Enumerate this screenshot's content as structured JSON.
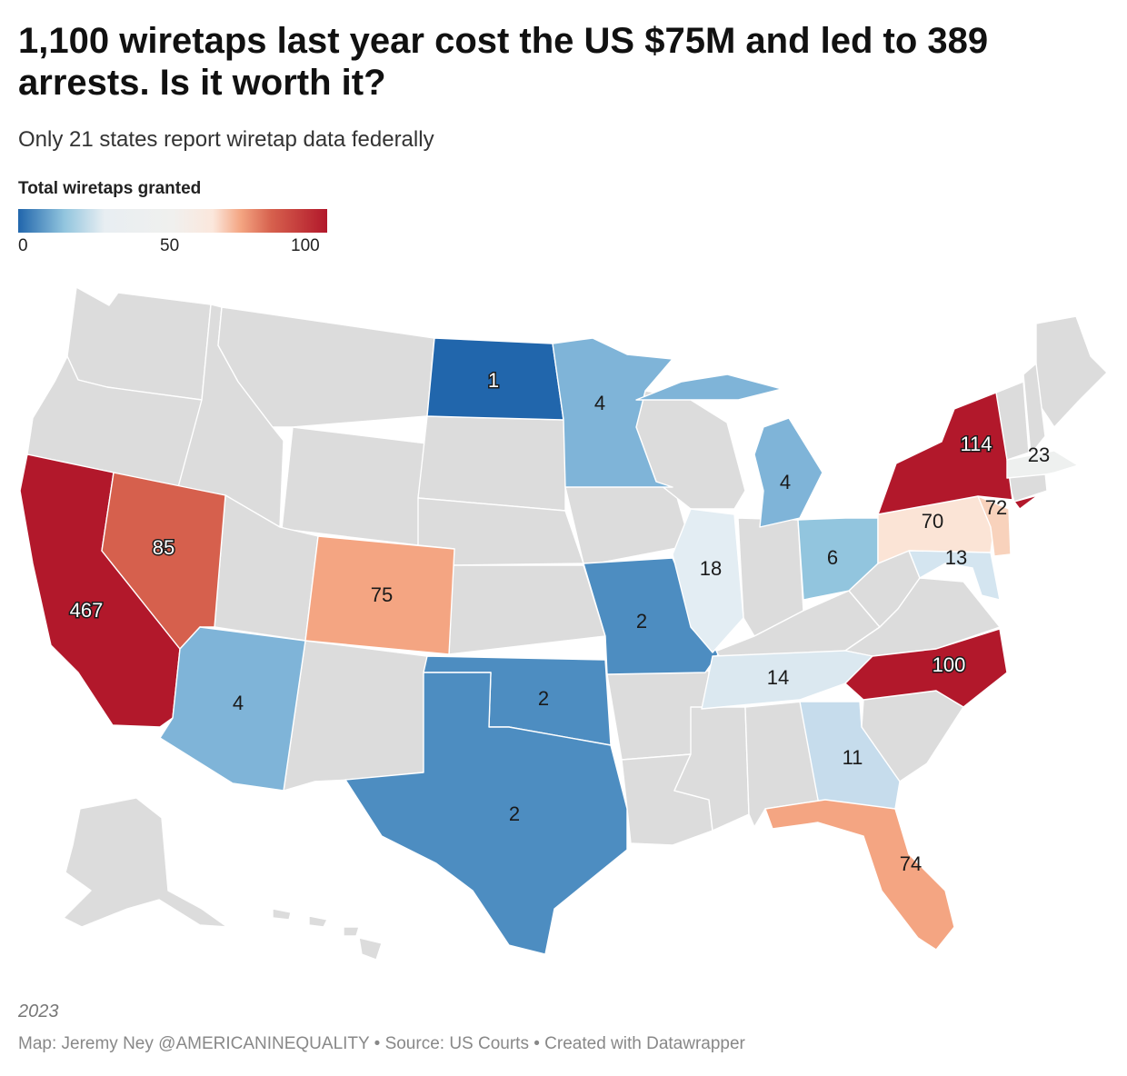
{
  "title": "1,100 wiretaps last year cost the US $75M and led to 389 arrests. Is it worth it?",
  "subtitle": "Only 21 states report wiretap data federally",
  "legend": {
    "title": "Total wiretaps granted",
    "min_label": "0",
    "mid_label": "50",
    "max_label": "100",
    "colors": [
      "#2166ac",
      "#92c5de",
      "#f0f0ee",
      "#f4a582",
      "#b2182b"
    ]
  },
  "no_data_color": "#dcdcdc",
  "states": {
    "CA": {
      "name": "California",
      "value": 467,
      "label": "467",
      "color": "#b2182b"
    },
    "NV": {
      "name": "Nevada",
      "value": 85,
      "label": "85",
      "color": "#d6604d"
    },
    "CO": {
      "name": "Colorado",
      "value": 75,
      "label": "75",
      "color": "#f4a582"
    },
    "AZ": {
      "name": "Arizona",
      "value": 4,
      "label": "4",
      "color": "#7fb4d8"
    },
    "ND": {
      "name": "North Dakota",
      "value": 1,
      "label": "1",
      "color": "#2166ac"
    },
    "MN": {
      "name": "Minnesota",
      "value": 4,
      "label": "4",
      "color": "#7fb4d8"
    },
    "MI": {
      "name": "Michigan",
      "value": 4,
      "label": "4",
      "color": "#7fb4d8"
    },
    "MO": {
      "name": "Missouri",
      "value": 2,
      "label": "2",
      "color": "#4d8dc1"
    },
    "OK": {
      "name": "Oklahoma",
      "value": 2,
      "label": "2",
      "color": "#4d8dc1"
    },
    "TX": {
      "name": "Texas",
      "value": 2,
      "label": "2",
      "color": "#4d8dc1"
    },
    "IL": {
      "name": "Illinois",
      "value": 18,
      "label": "18",
      "color": "#e3edf3"
    },
    "OH": {
      "name": "Ohio",
      "value": 6,
      "label": "6",
      "color": "#92c5de"
    },
    "TN": {
      "name": "Tennessee",
      "value": 14,
      "label": "14",
      "color": "#dbe8f0"
    },
    "GA": {
      "name": "Georgia",
      "value": 11,
      "label": "11",
      "color": "#c6dcec"
    },
    "FL": {
      "name": "Florida",
      "value": 74,
      "label": "74",
      "color": "#f4a582"
    },
    "NC": {
      "name": "North Carolina",
      "value": 100,
      "label": "100",
      "color": "#b2182b"
    },
    "PA": {
      "name": "Pennsylvania",
      "value": 70,
      "label": "70",
      "color": "#fbe4d6"
    },
    "NJ": {
      "name": "New Jersey",
      "value": 72,
      "label": "72",
      "color": "#f8d2bc"
    },
    "NY": {
      "name": "New York",
      "value": 114,
      "label": "114",
      "color": "#b2182b"
    },
    "MD": {
      "name": "Maryland",
      "value": 13,
      "label": "13",
      "color": "#d4e5f0"
    },
    "MA": {
      "name": "Massachusetts",
      "value": 23,
      "label": "23",
      "color": "#eef0ef"
    }
  },
  "footer": {
    "year": "2023",
    "credits": "Map: Jeremy Ney @AMERICANINEQUALITY • Source: US Courts • Created with Datawrapper"
  }
}
